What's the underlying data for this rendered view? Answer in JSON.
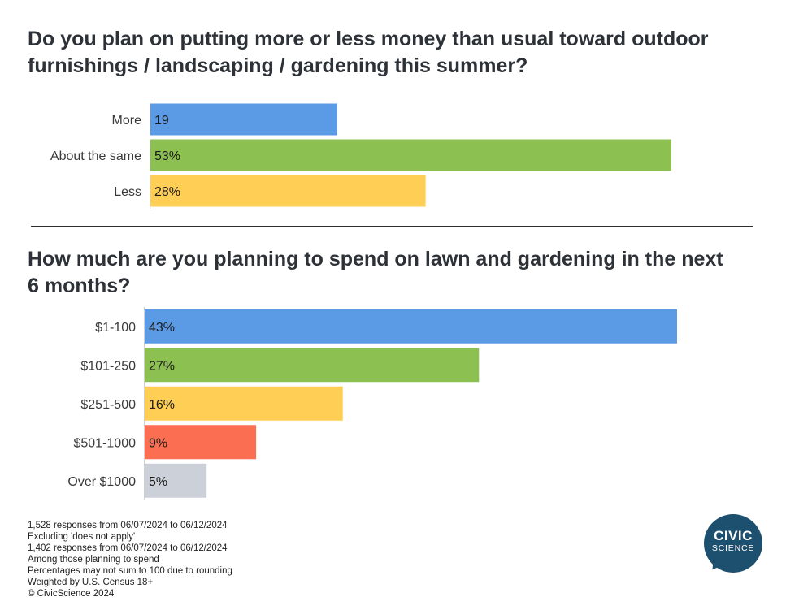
{
  "chart_data": [
    {
      "type": "bar",
      "orientation": "horizontal",
      "title": "Do you plan on putting more or less money than usual toward outdoor furnishings / landscaping / gardening this summer?",
      "categories": [
        "More",
        "About the same",
        "Less"
      ],
      "values": [
        19,
        53,
        28
      ],
      "value_labels": [
        "19",
        "53%",
        "28%"
      ],
      "colors": [
        "#5B9BE6",
        "#8CC152",
        "#FFCE54"
      ],
      "unit": "%",
      "xlim": [
        0,
        53
      ]
    },
    {
      "type": "bar",
      "orientation": "horizontal",
      "title": "How much are you planning to spend on lawn and gardening in the next 6 months?",
      "categories": [
        "$1-100",
        "$101-250",
        "$251-500",
        "$501-1000",
        "Over $1000"
      ],
      "values": [
        43,
        27,
        16,
        9,
        5
      ],
      "value_labels": [
        "43%",
        "27%",
        "16%",
        "9%",
        "5%"
      ],
      "colors": [
        "#5B9BE6",
        "#8CC152",
        "#FFCE54",
        "#FC6E51",
        "#CCD1D9"
      ],
      "unit": "%",
      "xlim": [
        0,
        43
      ]
    }
  ],
  "footnotes": [
    "1,528 responses from 06/07/2024 to 06/12/2024",
    "Excluding 'does not apply'",
    "1,402 responses from 06/07/2024 to 06/12/2024",
    "Among those planning to spend",
    "Percentages may not sum to 100 due to rounding",
    "Weighted by U.S. Census 18+",
    "© CivicScience 2024"
  ],
  "logo": {
    "line1": "CIVIC",
    "line2": "SCIENCE",
    "color": "#1D4F6E"
  }
}
